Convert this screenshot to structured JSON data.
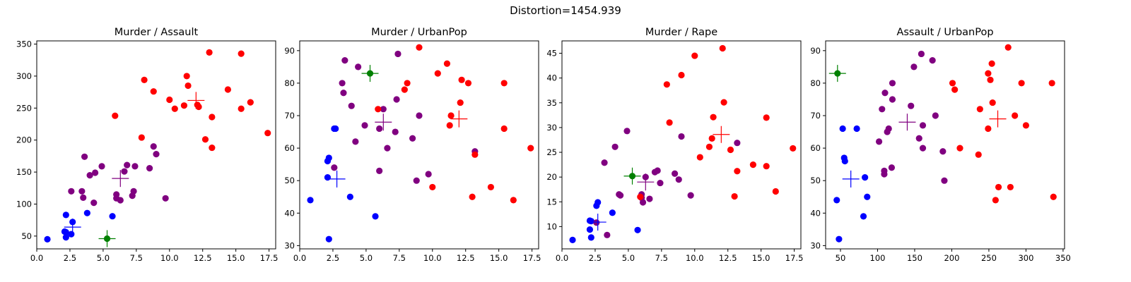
{
  "figure": {
    "suptitle": "Distortion=1454.939"
  },
  "colors": {
    "cluster_blue": "#0000ff",
    "cluster_purple": "#800080",
    "cluster_red": "#ff0000",
    "cluster_green": "#008000"
  },
  "chart_data": [
    {
      "type": "scatter",
      "title": "Murder / Assault",
      "xlabel": "",
      "ylabel": "",
      "xlim": [
        0,
        18
      ],
      "ylim": [
        30,
        355
      ],
      "xticks": [
        0.0,
        2.5,
        5.0,
        7.5,
        10.0,
        12.5,
        15.0,
        17.5
      ],
      "xtick_labels": [
        "0.0",
        "2.5",
        "5.0",
        "7.5",
        "10.0",
        "12.5",
        "15.0",
        "17.5"
      ],
      "yticks": [
        50,
        100,
        150,
        200,
        250,
        300,
        350
      ],
      "ytick_labels": [
        "50",
        "100",
        "150",
        "200",
        "250",
        "300",
        "350"
      ],
      "grid": false,
      "series": [
        {
          "color": "#0000ff",
          "points": [
            [
              0.8,
              45
            ],
            [
              2.1,
              57
            ],
            [
              2.2,
              48
            ],
            [
              2.2,
              83
            ],
            [
              2.6,
              53
            ],
            [
              2.7,
              72
            ],
            [
              2.2,
              56
            ],
            [
              3.8,
              86
            ],
            [
              5.7,
              81
            ]
          ]
        },
        {
          "color": "#800080",
          "points": [
            [
              2.6,
              120
            ],
            [
              3.4,
              120
            ],
            [
              3.5,
              110
            ],
            [
              3.6,
              174
            ],
            [
              4.0,
              145
            ],
            [
              4.3,
              102
            ],
            [
              4.4,
              149
            ],
            [
              4.9,
              159
            ],
            [
              6.0,
              115
            ],
            [
              6.0,
              109
            ],
            [
              6.3,
              106
            ],
            [
              6.6,
              151
            ],
            [
              6.8,
              161
            ],
            [
              7.2,
              113
            ],
            [
              7.3,
              120
            ],
            [
              7.4,
              159
            ],
            [
              8.5,
              156
            ],
            [
              8.8,
              190
            ],
            [
              9.0,
              178
            ],
            [
              9.7,
              109
            ]
          ]
        },
        {
          "color": "#ff0000",
          "points": [
            [
              5.9,
              238
            ],
            [
              7.9,
              204
            ],
            [
              8.1,
              294
            ],
            [
              8.8,
              276
            ],
            [
              10.0,
              263
            ],
            [
              10.4,
              249
            ],
            [
              11.1,
              254
            ],
            [
              11.3,
              300
            ],
            [
              11.4,
              285
            ],
            [
              12.1,
              255
            ],
            [
              12.2,
              252
            ],
            [
              12.7,
              201
            ],
            [
              13.0,
              337
            ],
            [
              13.2,
              236
            ],
            [
              13.2,
              188
            ],
            [
              14.4,
              279
            ],
            [
              15.4,
              335
            ],
            [
              15.4,
              249
            ],
            [
              16.1,
              259
            ],
            [
              17.4,
              211
            ]
          ]
        },
        {
          "color": "#008000",
          "points": [
            [
              5.3,
              46
            ]
          ]
        }
      ],
      "centroids": [
        {
          "color": "#0000ff",
          "x": 2.7,
          "y": 64
        },
        {
          "color": "#800080",
          "x": 6.3,
          "y": 140
        },
        {
          "color": "#ff0000",
          "x": 12.0,
          "y": 262
        },
        {
          "color": "#008000",
          "x": 5.3,
          "y": 46
        }
      ]
    },
    {
      "type": "scatter",
      "title": "Murder / UrbanPop",
      "xlabel": "",
      "ylabel": "",
      "xlim": [
        0,
        18
      ],
      "ylim": [
        29,
        93
      ],
      "xticks": [
        0.0,
        2.5,
        5.0,
        7.5,
        10.0,
        12.5,
        15.0,
        17.5
      ],
      "xtick_labels": [
        "0.0",
        "2.5",
        "5.0",
        "7.5",
        "10.0",
        "12.5",
        "15.0",
        "17.5"
      ],
      "yticks": [
        30,
        40,
        50,
        60,
        70,
        80,
        90
      ],
      "ytick_labels": [
        "30",
        "40",
        "50",
        "60",
        "70",
        "80",
        "90"
      ],
      "grid": false,
      "series": [
        {
          "color": "#0000ff",
          "points": [
            [
              0.8,
              44
            ],
            [
              2.1,
              51
            ],
            [
              2.1,
              56
            ],
            [
              2.2,
              57
            ],
            [
              2.2,
              32
            ],
            [
              2.6,
              66
            ],
            [
              2.7,
              66
            ],
            [
              3.8,
              45
            ],
            [
              5.7,
              39
            ]
          ]
        },
        {
          "color": "#800080",
          "points": [
            [
              2.6,
              54
            ],
            [
              3.2,
              80
            ],
            [
              3.3,
              77
            ],
            [
              3.4,
              87
            ],
            [
              3.9,
              73
            ],
            [
              4.2,
              62
            ],
            [
              4.4,
              85
            ],
            [
              4.9,
              67
            ],
            [
              6.0,
              53
            ],
            [
              6.0,
              66
            ],
            [
              6.3,
              72
            ],
            [
              6.6,
              60
            ],
            [
              7.2,
              65
            ],
            [
              7.3,
              75
            ],
            [
              7.4,
              89
            ],
            [
              8.5,
              63
            ],
            [
              8.8,
              50
            ],
            [
              9.0,
              70
            ],
            [
              9.7,
              52
            ],
            [
              13.2,
              59
            ]
          ]
        },
        {
          "color": "#ff0000",
          "points": [
            [
              5.9,
              72
            ],
            [
              7.9,
              78
            ],
            [
              8.1,
              80
            ],
            [
              9.0,
              91
            ],
            [
              10.0,
              48
            ],
            [
              10.4,
              83
            ],
            [
              11.1,
              86
            ],
            [
              11.3,
              67
            ],
            [
              11.4,
              70
            ],
            [
              12.1,
              74
            ],
            [
              12.2,
              81
            ],
            [
              12.7,
              80
            ],
            [
              13.0,
              45
            ],
            [
              13.2,
              58
            ],
            [
              14.4,
              48
            ],
            [
              15.4,
              80
            ],
            [
              15.4,
              66
            ],
            [
              16.1,
              44
            ],
            [
              17.4,
              60
            ]
          ]
        },
        {
          "color": "#008000",
          "points": [
            [
              5.3,
              83
            ]
          ]
        }
      ],
      "centroids": [
        {
          "color": "#0000ff",
          "x": 2.8,
          "y": 50.5
        },
        {
          "color": "#800080",
          "x": 6.3,
          "y": 68
        },
        {
          "color": "#ff0000",
          "x": 12.0,
          "y": 69
        },
        {
          "color": "#008000",
          "x": 5.3,
          "y": 83
        }
      ]
    },
    {
      "type": "scatter",
      "title": "Murder / Rape",
      "xlabel": "",
      "ylabel": "",
      "xlim": [
        0,
        18
      ],
      "ylim": [
        5.5,
        47.5
      ],
      "xticks": [
        0.0,
        2.5,
        5.0,
        7.5,
        10.0,
        12.5,
        15.0,
        17.5
      ],
      "xtick_labels": [
        "0.0",
        "2.5",
        "5.0",
        "7.5",
        "10.0",
        "12.5",
        "15.0",
        "17.5"
      ],
      "yticks": [
        10,
        15,
        20,
        25,
        30,
        35,
        40,
        45
      ],
      "ytick_labels": [
        "10",
        "15",
        "20",
        "25",
        "30",
        "35",
        "40",
        "45"
      ],
      "grid": false,
      "series": [
        {
          "color": "#0000ff",
          "points": [
            [
              0.8,
              7.3
            ],
            [
              2.1,
              9.4
            ],
            [
              2.1,
              11.2
            ],
            [
              2.2,
              7.8
            ],
            [
              2.6,
              14.2
            ],
            [
              2.7,
              14.9
            ],
            [
              2.2,
              11.1
            ],
            [
              3.8,
              12.8
            ],
            [
              5.7,
              9.3
            ]
          ]
        },
        {
          "color": "#800080",
          "points": [
            [
              2.6,
              10.8
            ],
            [
              3.2,
              22.9
            ],
            [
              3.4,
              8.3
            ],
            [
              4.0,
              26.1
            ],
            [
              4.3,
              16.5
            ],
            [
              4.4,
              16.3
            ],
            [
              4.9,
              29.3
            ],
            [
              6.0,
              15.8
            ],
            [
              6.0,
              16.5
            ],
            [
              6.3,
              20.0
            ],
            [
              6.6,
              15.6
            ],
            [
              7.0,
              21.0
            ],
            [
              7.2,
              21.3
            ],
            [
              7.4,
              18.8
            ],
            [
              8.5,
              20.7
            ],
            [
              8.8,
              19.5
            ],
            [
              9.0,
              28.2
            ],
            [
              9.7,
              16.3
            ],
            [
              13.2,
              26.9
            ],
            [
              6.1,
              14.9
            ]
          ]
        },
        {
          "color": "#ff0000",
          "points": [
            [
              5.9,
              16.0
            ],
            [
              7.9,
              38.7
            ],
            [
              8.1,
              31.0
            ],
            [
              9.0,
              40.6
            ],
            [
              10.0,
              44.5
            ],
            [
              10.4,
              24.0
            ],
            [
              11.1,
              26.1
            ],
            [
              11.3,
              27.8
            ],
            [
              11.4,
              32.1
            ],
            [
              12.1,
              46.0
            ],
            [
              12.2,
              35.1
            ],
            [
              12.7,
              25.5
            ],
            [
              13.0,
              16.1
            ],
            [
              13.2,
              21.2
            ],
            [
              14.4,
              22.5
            ],
            [
              15.4,
              32.0
            ],
            [
              15.4,
              22.2
            ],
            [
              16.1,
              17.1
            ],
            [
              17.4,
              25.8
            ]
          ]
        },
        {
          "color": "#008000",
          "points": [
            [
              5.3,
              20.2
            ]
          ]
        }
      ],
      "centroids": [
        {
          "color": "#0000ff",
          "x": 2.7,
          "y": 10.9
        },
        {
          "color": "#800080",
          "x": 6.3,
          "y": 19.0
        },
        {
          "color": "#ff0000",
          "x": 12.0,
          "y": 28.6
        },
        {
          "color": "#008000",
          "x": 5.3,
          "y": 20.2
        }
      ]
    },
    {
      "type": "scatter",
      "title": "Assault / UrbanPop",
      "xlabel": "",
      "ylabel": "",
      "xlim": [
        30,
        352
      ],
      "ylim": [
        29,
        93
      ],
      "xticks": [
        50,
        100,
        150,
        200,
        250,
        300,
        350
      ],
      "xtick_labels": [
        "50",
        "100",
        "150",
        "200",
        "250",
        "300",
        "350"
      ],
      "yticks": [
        30,
        40,
        50,
        60,
        70,
        80,
        90
      ],
      "ytick_labels": [
        "30",
        "40",
        "50",
        "60",
        "70",
        "80",
        "90"
      ],
      "grid": false,
      "series": [
        {
          "color": "#0000ff",
          "points": [
            [
              45,
              44
            ],
            [
              48,
              32
            ],
            [
              53,
              66
            ],
            [
              55,
              57
            ],
            [
              56,
              56
            ],
            [
              72,
              66
            ],
            [
              81,
              39
            ],
            [
              83,
              51
            ],
            [
              86,
              45
            ]
          ]
        },
        {
          "color": "#800080",
          "points": [
            [
              102,
              62
            ],
            [
              106,
              72
            ],
            [
              109,
              53
            ],
            [
              109,
              52
            ],
            [
              110,
              77
            ],
            [
              113,
              65
            ],
            [
              115,
              66
            ],
            [
              119,
              54
            ],
            [
              120,
              75
            ],
            [
              120,
              80
            ],
            [
              145,
              73
            ],
            [
              149,
              85
            ],
            [
              156,
              63
            ],
            [
              159,
              89
            ],
            [
              161,
              67
            ],
            [
              161,
              60
            ],
            [
              174,
              87
            ],
            [
              178,
              70
            ],
            [
              188,
              59
            ],
            [
              190,
              50
            ]
          ]
        },
        {
          "color": "#ff0000",
          "points": [
            [
              201,
              80
            ],
            [
              204,
              78
            ],
            [
              211,
              60
            ],
            [
              236,
              58
            ],
            [
              238,
              72
            ],
            [
              249,
              83
            ],
            [
              249,
              66
            ],
            [
              252,
              81
            ],
            [
              254,
              86
            ],
            [
              255,
              74
            ],
            [
              259,
              44
            ],
            [
              263,
              48
            ],
            [
              276,
              91
            ],
            [
              279,
              48
            ],
            [
              285,
              70
            ],
            [
              294,
              80
            ],
            [
              300,
              67
            ],
            [
              335,
              80
            ],
            [
              337,
              45
            ]
          ]
        },
        {
          "color": "#008000",
          "points": [
            [
              46,
              83
            ]
          ]
        }
      ],
      "centroids": [
        {
          "color": "#0000ff",
          "x": 64,
          "y": 50.5
        },
        {
          "color": "#800080",
          "x": 140,
          "y": 68
        },
        {
          "color": "#ff0000",
          "x": 262,
          "y": 69
        },
        {
          "color": "#008000",
          "x": 46,
          "y": 83
        }
      ]
    }
  ]
}
